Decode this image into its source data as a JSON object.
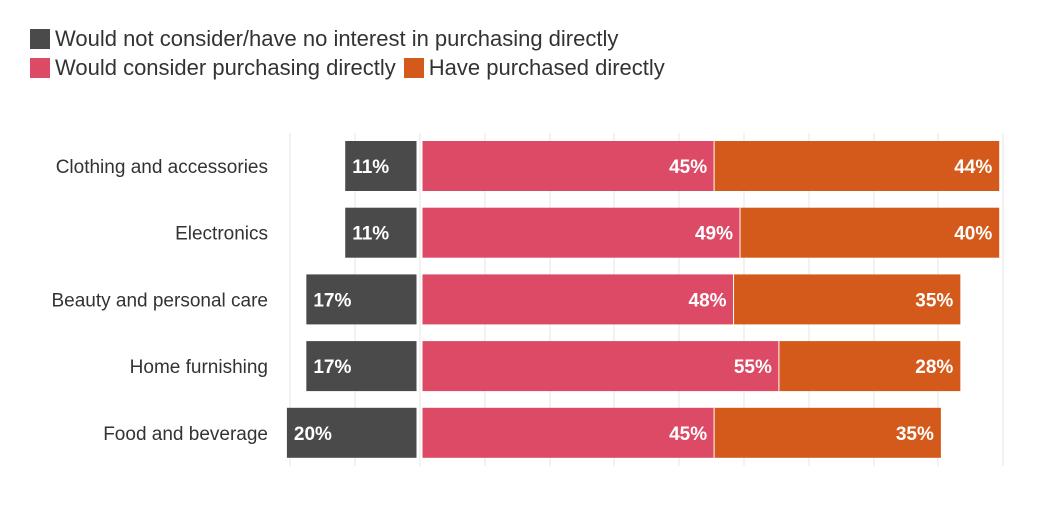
{
  "chart_data": {
    "type": "bar",
    "orientation": "horizontal",
    "stacked": "diverging",
    "categories": [
      "Clothing and accessories",
      "Electronics",
      "Beauty and personal care",
      "Home furnishing",
      "Food and beverage"
    ],
    "series": [
      {
        "name": "Would not consider/have no interest in purchasing directly",
        "values": [
          11,
          11,
          17,
          17,
          20
        ],
        "color": "#4a4a4a",
        "direction": "left"
      },
      {
        "name": "Would consider purchasing directly",
        "values": [
          45,
          49,
          48,
          55,
          45
        ],
        "color": "#dc4a66",
        "direction": "right"
      },
      {
        "name": "Have purchased directly",
        "values": [
          44,
          40,
          35,
          28,
          35
        ],
        "color": "#d45a1c",
        "direction": "right"
      }
    ],
    "value_suffix": "%",
    "legend_position": "top-left",
    "grid": true
  }
}
